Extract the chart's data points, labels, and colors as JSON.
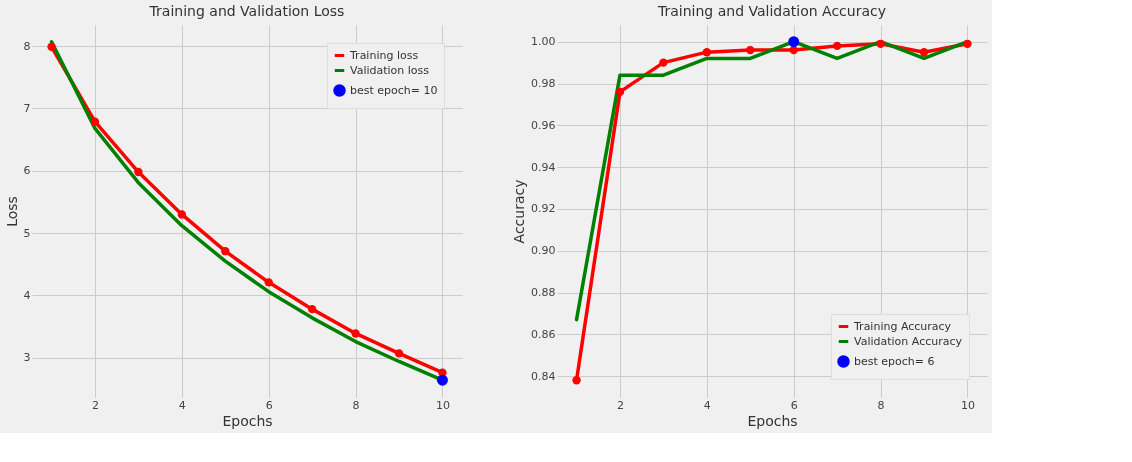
{
  "chart_data": [
    {
      "type": "line",
      "title": "Training and Validation Loss",
      "xlabel": "Epochs",
      "ylabel": "Loss",
      "xlim": [
        0.55,
        10.45
      ],
      "xticks": [
        2,
        4,
        6,
        8,
        10
      ],
      "ylim": [
        2.37,
        8.34
      ],
      "yticks": [
        3,
        4,
        5,
        6,
        7,
        8
      ],
      "grid": true,
      "legend": "top right",
      "line_style": "solid",
      "x": [
        1,
        2,
        3,
        4,
        5,
        6,
        7,
        8,
        9,
        10
      ],
      "series": [
        {
          "name": "Training loss",
          "color": "#ff0000",
          "marker": "circle",
          "values": [
            7.99,
            6.79,
            5.98,
            5.3,
            4.71,
            4.21,
            3.78,
            3.39,
            3.07,
            2.76
          ]
        },
        {
          "name": "Validation loss",
          "color": "#008000",
          "marker": "none",
          "values": [
            8.07,
            6.68,
            5.81,
            5.12,
            4.55,
            4.06,
            3.64,
            3.26,
            2.94,
            2.64
          ]
        },
        {
          "name": "best epoch= 10",
          "type": "scatter",
          "color": "#0000ff",
          "marker": "circle",
          "x": [
            10
          ],
          "values": [
            2.64
          ]
        }
      ]
    },
    {
      "type": "line",
      "title": "Training and Validation Accuracy",
      "xlabel": "Epochs",
      "ylabel": "Accuracy",
      "xlim": [
        0.55,
        10.45
      ],
      "xticks": [
        2,
        4,
        6,
        8,
        10
      ],
      "ylim": [
        0.83,
        1.008
      ],
      "yticks": [
        0.84,
        0.86,
        0.88,
        {
          "value": 0.9,
          "label": "0.90"
        },
        0.92,
        0.94,
        0.96,
        0.98,
        {
          "value": 1.0,
          "label": "1.00"
        }
      ],
      "grid": true,
      "legend": "bottom right",
      "line_style": "solid",
      "x": [
        1,
        2,
        3,
        4,
        5,
        6,
        7,
        8,
        9,
        10
      ],
      "series": [
        {
          "name": "Training Accuracy",
          "color": "#ff0000",
          "marker": "circle",
          "values": [
            0.838,
            0.976,
            0.99,
            0.995,
            0.996,
            0.996,
            0.998,
            0.999,
            0.995,
            0.999
          ]
        },
        {
          "name": "Validation Accuracy",
          "color": "#008000",
          "marker": "none",
          "values": [
            0.867,
            0.984,
            0.984,
            0.992,
            0.992,
            1.0,
            0.992,
            1.0,
            0.992,
            1.0
          ]
        },
        {
          "name": "best epoch= 6",
          "type": "scatter",
          "color": "#0000ff",
          "marker": "circle",
          "x": [
            6
          ],
          "values": [
            1.0
          ]
        }
      ]
    }
  ]
}
